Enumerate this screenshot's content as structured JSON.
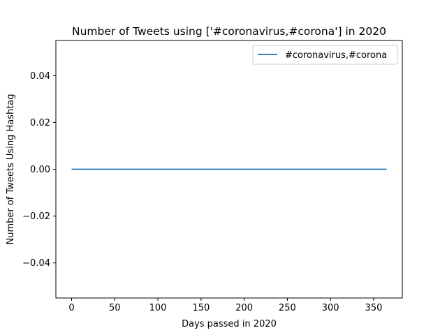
{
  "chart_data": {
    "type": "line",
    "title": "Number of Tweets using ['#coronavirus,#corona'] in 2020",
    "xlabel": "Days passed in 2020",
    "ylabel": "Number of Tweets Using Hashtag",
    "xlim": [
      -18.2,
      383.2
    ],
    "ylim": [
      -0.055,
      0.055
    ],
    "xticks": [
      0,
      50,
      100,
      150,
      200,
      250,
      300,
      350
    ],
    "xtick_labels": [
      "0",
      "50",
      "100",
      "150",
      "200",
      "250",
      "300",
      "350"
    ],
    "yticks": [
      -0.04,
      -0.02,
      0.0,
      0.02,
      0.04
    ],
    "ytick_labels": [
      "−0.04",
      "−0.02",
      "0.00",
      "0.02",
      "0.04"
    ],
    "grid": false,
    "legend_position": "top-right",
    "series": [
      {
        "name": "#coronavirus,#corona",
        "color": "#1f77b4",
        "x": [
          0,
          365
        ],
        "y": [
          0,
          0
        ]
      }
    ]
  }
}
